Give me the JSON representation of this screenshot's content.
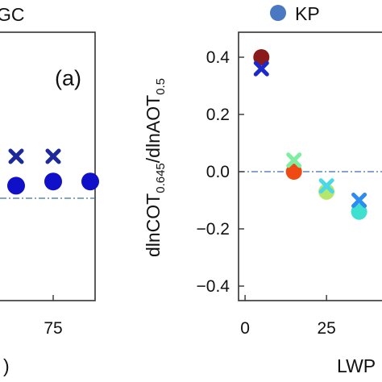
{
  "legend": {
    "left_fragment": "GC",
    "right_label": "KP",
    "right_color": "#4a78c2"
  },
  "chart_data": [
    {
      "type": "scatter",
      "panel_label": "(a)",
      "xticks": [
        "75"
      ],
      "xlabel_fragment": ")",
      "series": [
        {
          "marker": "cross",
          "color": "#1c2a9a",
          "points": [
            [
              65,
              0.2
            ],
            [
              75,
              0.2
            ]
          ]
        },
        {
          "marker": "circle",
          "color": "#1010c8",
          "points": [
            [
              65,
              0.06
            ],
            [
              75,
              0.08
            ],
            [
              85,
              0.08
            ]
          ]
        }
      ],
      "reference_line": {
        "y": 0.0,
        "style": "dash-dot",
        "color": "#3c6fb0"
      }
    },
    {
      "type": "scatter",
      "ylabel": "dlnCOT",
      "ylabel_sub1": "0.645",
      "ylabel_mid": "/dlnAOT",
      "ylabel_sub2": "0.5",
      "xlabel_fragment": "LWP",
      "xticks": [
        "0",
        "25"
      ],
      "yticks": [
        "0.4",
        "0.2",
        "0.0",
        "−0.2",
        "−0.4"
      ],
      "ylim": [
        -0.4,
        0.4
      ],
      "xlim": [
        -2,
        45
      ],
      "reference_line": {
        "y": 0.0,
        "style": "dash-dot",
        "color": "#3c6fb0"
      },
      "series": [
        {
          "marker": "circle",
          "points": [
            {
              "x": 5,
              "y": 0.4,
              "color": "#8b1a1a"
            },
            {
              "x": 15,
              "y": 0.0,
              "color": "#f04a14"
            },
            {
              "x": 25,
              "y": -0.07,
              "color": "#b5e86a"
            },
            {
              "x": 35,
              "y": -0.14,
              "color": "#40e0d0"
            }
          ]
        },
        {
          "marker": "cross",
          "points": [
            {
              "x": 5,
              "y": 0.36,
              "color": "#1c2acc"
            },
            {
              "x": 15,
              "y": 0.04,
              "color": "#7eeea0"
            },
            {
              "x": 25,
              "y": -0.05,
              "color": "#4ad8e8"
            },
            {
              "x": 35,
              "y": -0.1,
              "color": "#2c8cf0"
            }
          ]
        }
      ]
    }
  ]
}
